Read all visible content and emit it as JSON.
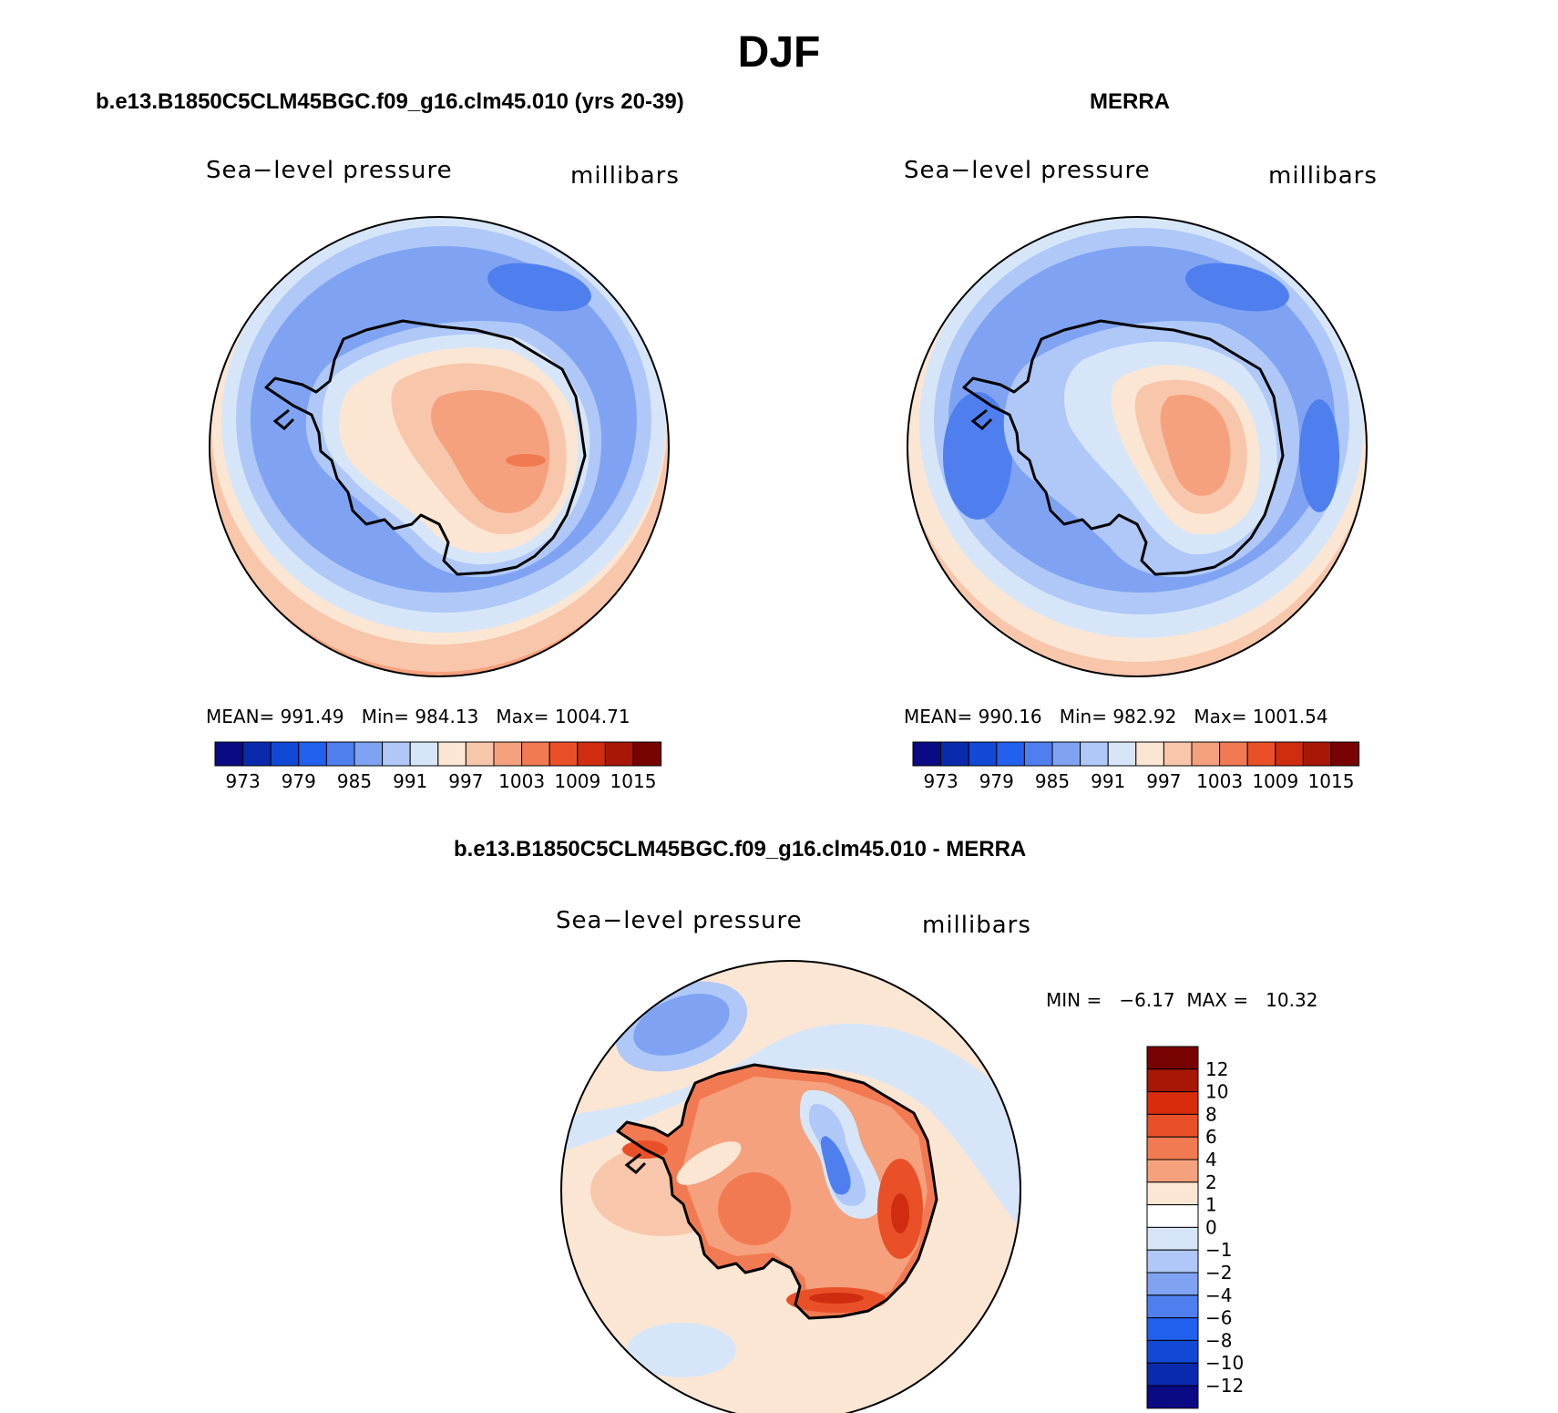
{
  "title": "DJF",
  "chart_data": [
    {
      "type": "heatmap",
      "title": "b.e13.B1850C5CLM45BGC.f09_g16.clm45.010 (yrs 20-39)",
      "variable": "Sea−level pressure",
      "units": "millibars",
      "projection": "south polar stereographic",
      "mean_label": "MEAN=",
      "mean": "991.49",
      "min_label": "Min=",
      "min": "984.13",
      "max_label": "Max=",
      "max": "1004.71",
      "colorbar_ticks": [
        "973",
        "979",
        "985",
        "991",
        "997",
        "1003",
        "1009",
        "1015"
      ],
      "colorbar_colors": [
        "#0a0a84",
        "#0a2aae",
        "#1248d6",
        "#2260ee",
        "#4f7fef",
        "#7fa3f2",
        "#afc8f7",
        "#d6e6f8",
        "#fbe6d4",
        "#f8c6aa",
        "#f5a17e",
        "#f27a52",
        "#ea5028",
        "#cf2c10",
        "#a81606",
        "#770402"
      ]
    },
    {
      "type": "heatmap",
      "title": "MERRA",
      "variable": "Sea−level pressure",
      "units": "millibars",
      "projection": "south polar stereographic",
      "mean_label": "MEAN=",
      "mean": "990.16",
      "min_label": "Min=",
      "min": "982.92",
      "max_label": "Max=",
      "max": "1001.54",
      "colorbar_ticks": [
        "973",
        "979",
        "985",
        "991",
        "997",
        "1003",
        "1009",
        "1015"
      ],
      "colorbar_colors": [
        "#0a0a84",
        "#0a2aae",
        "#1248d6",
        "#2260ee",
        "#4f7fef",
        "#7fa3f2",
        "#afc8f7",
        "#d6e6f8",
        "#fbe6d4",
        "#f8c6aa",
        "#f5a17e",
        "#f27a52",
        "#ea5028",
        "#cf2c10",
        "#a81606",
        "#770402"
      ]
    },
    {
      "type": "heatmap",
      "title": "b.e13.B1850C5CLM45BGC.f09_g16.clm45.010 - MERRA",
      "variable": "Sea−level pressure",
      "units": "millibars",
      "projection": "south polar stereographic",
      "min_label": "MIN =",
      "min": "−6.17",
      "max_label": "MAX =",
      "max": "10.32",
      "colorbar_ticks": [
        "12",
        "10",
        "8",
        "6",
        "4",
        "2",
        "1",
        "0",
        "−1",
        "−2",
        "−4",
        "−6",
        "−8",
        "−10",
        "−12"
      ],
      "colorbar_colors": [
        "#770402",
        "#a81606",
        "#d82c0c",
        "#ea5028",
        "#f27a52",
        "#f5a17e",
        "#fbe6d4",
        "#ffffff",
        "#d6e6f8",
        "#afc8f7",
        "#7fa3f2",
        "#4f7fef",
        "#2260ee",
        "#1248d6",
        "#0a2aae",
        "#0a0a84"
      ]
    }
  ]
}
